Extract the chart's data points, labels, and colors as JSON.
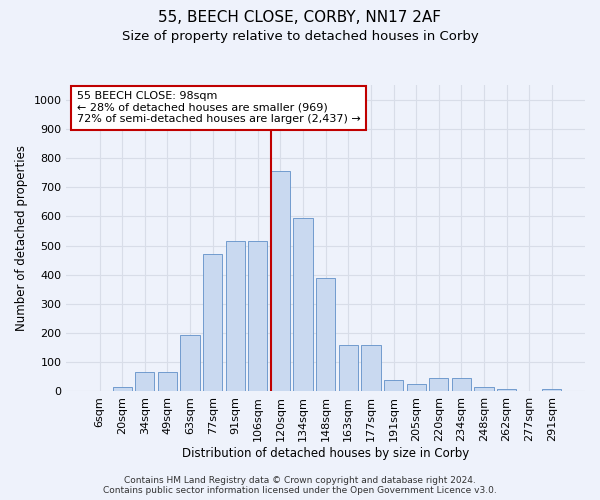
{
  "title": "55, BEECH CLOSE, CORBY, NN17 2AF",
  "subtitle": "Size of property relative to detached houses in Corby",
  "xlabel": "Distribution of detached houses by size in Corby",
  "ylabel": "Number of detached properties",
  "bar_labels": [
    "6sqm",
    "20sqm",
    "34sqm",
    "49sqm",
    "63sqm",
    "77sqm",
    "91sqm",
    "106sqm",
    "120sqm",
    "134sqm",
    "148sqm",
    "163sqm",
    "177sqm",
    "191sqm",
    "205sqm",
    "220sqm",
    "234sqm",
    "248sqm",
    "262sqm",
    "277sqm",
    "291sqm"
  ],
  "bar_values": [
    0,
    15,
    65,
    65,
    195,
    470,
    515,
    515,
    755,
    595,
    390,
    160,
    160,
    40,
    25,
    45,
    45,
    15,
    10,
    0,
    10
  ],
  "bar_color": "#c9d9f0",
  "bar_edge_color": "#6090c8",
  "vline_x": 7.57,
  "vline_color": "#c00000",
  "annotation_text": "55 BEECH CLOSE: 98sqm\n← 28% of detached houses are smaller (969)\n72% of semi-detached houses are larger (2,437) →",
  "annotation_box_color": "#ffffff",
  "annotation_box_edge": "#c00000",
  "ylim": [
    0,
    1050
  ],
  "yticks": [
    0,
    100,
    200,
    300,
    400,
    500,
    600,
    700,
    800,
    900,
    1000
  ],
  "footer": "Contains HM Land Registry data © Crown copyright and database right 2024.\nContains public sector information licensed under the Open Government Licence v3.0.",
  "bg_color": "#eef2fb",
  "grid_color": "#d8dde8",
  "title_fontsize": 11,
  "subtitle_fontsize": 9.5,
  "axis_label_fontsize": 8.5,
  "tick_fontsize": 8,
  "footer_fontsize": 6.5
}
